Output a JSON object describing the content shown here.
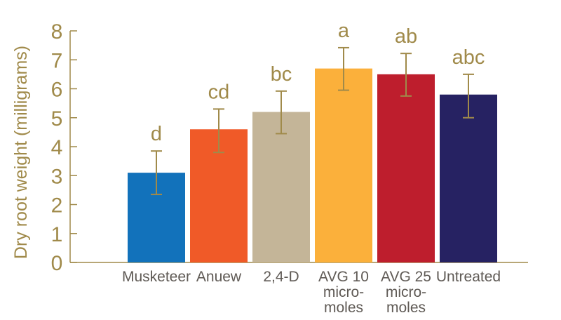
{
  "chart_data": {
    "type": "bar",
    "title": "",
    "xlabel": "",
    "ylabel": "Dry root weight (milligrams)",
    "ylim": [
      0,
      8
    ],
    "yticks": [
      "0",
      "1",
      "2",
      "3",
      "4",
      "5",
      "6",
      "7",
      "8"
    ],
    "categories": [
      [
        "Musketeer"
      ],
      [
        "Anuew"
      ],
      [
        "2,4-D"
      ],
      [
        "AVG 10",
        "micro-",
        "moles"
      ],
      [
        "AVG 25",
        "micro-",
        "moles"
      ],
      [
        "Untreated"
      ]
    ],
    "values": [
      3.1,
      4.6,
      5.2,
      6.7,
      6.5,
      5.8
    ],
    "error_low": [
      2.35,
      3.8,
      4.45,
      5.95,
      5.75,
      5.0
    ],
    "error_high": [
      3.85,
      5.3,
      5.92,
      7.42,
      7.22,
      6.5
    ],
    "significance_labels": [
      "d",
      "cd",
      "bc",
      "a",
      "ab",
      "abc"
    ],
    "bar_colors": [
      "#1272bb",
      "#f05a28",
      "#c4b598",
      "#fbb03b",
      "#be1e2d",
      "#262262"
    ],
    "axis_color": "#a08a4a",
    "error_bar_color": "#a08a4a",
    "grid": false,
    "legend": "none"
  }
}
